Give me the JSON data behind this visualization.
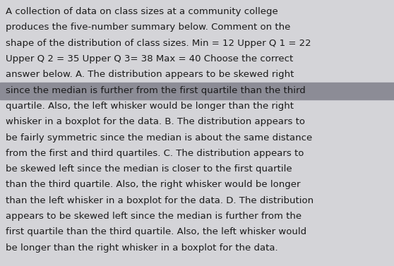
{
  "background_color": "#d4d4d8",
  "highlight_color": "#8c8c96",
  "text_color": "#1a1a1a",
  "font_size": 9.5,
  "lines": [
    "A collection of data on class sizes at a community college",
    "produces the five-number summary below. Comment on the",
    "shape of the distribution of class sizes. Min = 12 Upper Q 1 = 22",
    "Upper Q 2 = 35 Upper Q 3= 38 Max = 40 Choose the correct",
    "answer below. A. The distribution appears to be skewed right",
    "since the median is further from the first quartile than the third",
    "quartile. Also, the left whisker would be longer than the right",
    "whisker in a boxplot for the data. B. The distribution appears to",
    "be fairly symmetric since the median is about the same distance",
    "from the first and third quartiles. C. The distribution appears to",
    "be skewed left since the median is closer to the first quartile",
    "than the third quartile. Also, the right whisker would be longer",
    "than the left whisker in a boxplot for the data. D. The distribution",
    "appears to be skewed left since the median is further from the",
    "first quartile than the third quartile. Also, the left whisker would",
    "be longer than the right whisker in a boxplot for the data."
  ],
  "highlight_lines": [
    5
  ],
  "figsize": [
    5.58,
    3.77
  ],
  "dpi": 100
}
